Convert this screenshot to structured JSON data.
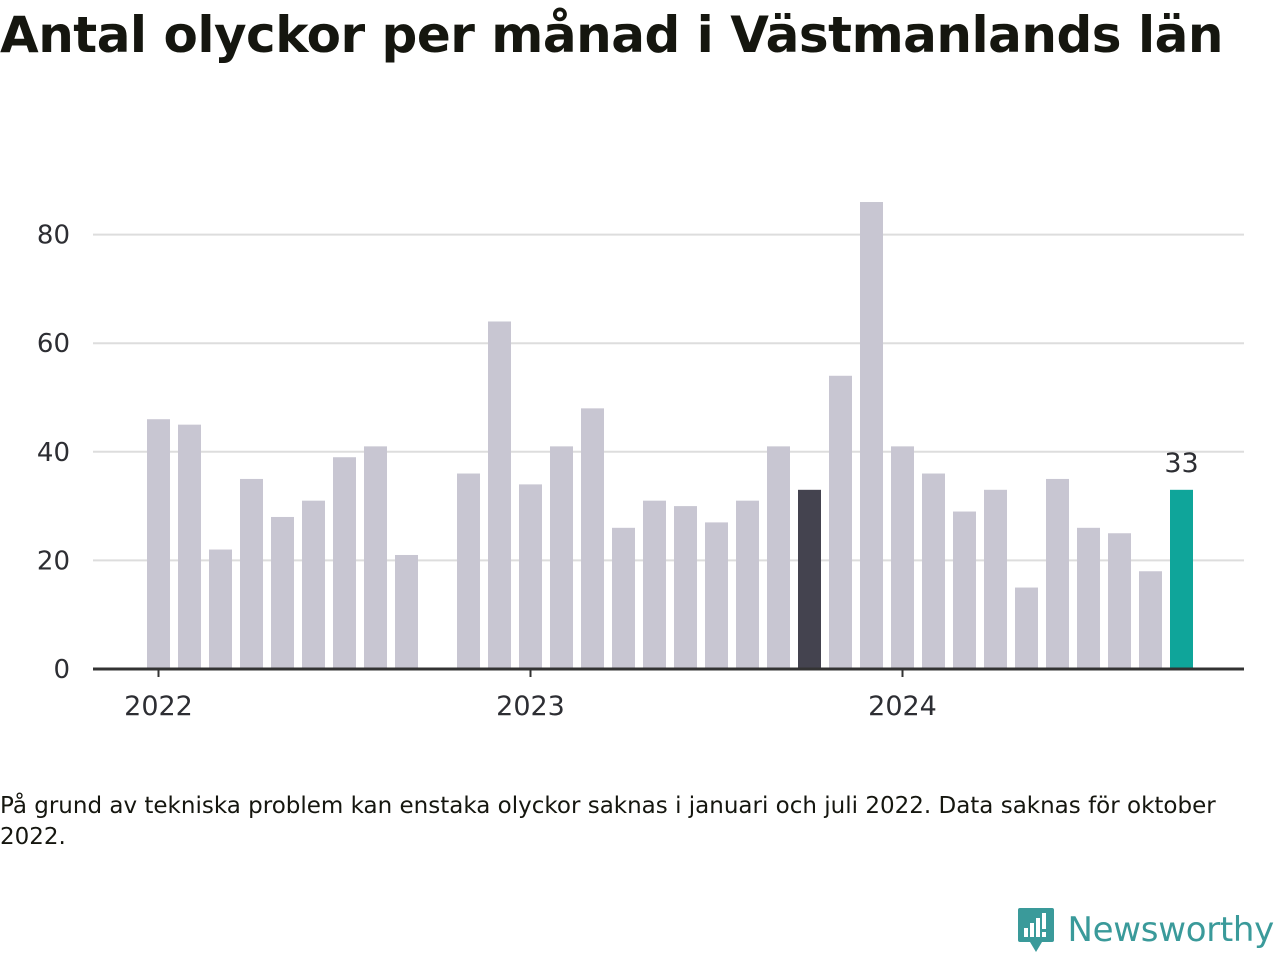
{
  "title": "Antal olyckor per månad i Västmanlands län",
  "note": "På grund av tekniska problem kan enstaka olyckor saknas i januari och juli 2022. Data saknas för oktober 2022.",
  "brand": {
    "name": "Newsworthy",
    "icon": "newsworthy-logo-icon"
  },
  "colors": {
    "bar": "#c8c6d2",
    "highlight_previous_year": "#44434f",
    "highlight_latest": "#0fa59a",
    "gridline": "#dddddd",
    "baseline": "#333333",
    "brand": "#3a9a9a"
  },
  "chart_data": {
    "type": "bar",
    "x_type": "month",
    "x": [
      "2022-01",
      "2022-02",
      "2022-03",
      "2022-04",
      "2022-05",
      "2022-06",
      "2022-07",
      "2022-08",
      "2022-09",
      "2022-10",
      "2022-11",
      "2022-12",
      "2023-01",
      "2023-02",
      "2023-03",
      "2023-04",
      "2023-05",
      "2023-06",
      "2023-07",
      "2023-08",
      "2023-09",
      "2023-10",
      "2023-11",
      "2023-12",
      "2024-01",
      "2024-02",
      "2024-03",
      "2024-04",
      "2024-05",
      "2024-06",
      "2024-07",
      "2024-08",
      "2024-09",
      "2024-10"
    ],
    "values": [
      46,
      45,
      22,
      35,
      28,
      31,
      39,
      41,
      21,
      null,
      36,
      64,
      34,
      41,
      48,
      26,
      31,
      30,
      27,
      31,
      41,
      33,
      54,
      86,
      41,
      36,
      29,
      33,
      15,
      35,
      26,
      25,
      18,
      33
    ],
    "highlighted": {
      "2023-10": "highlight_previous_year",
      "2024-10": "highlight_latest"
    },
    "data_labels": [
      {
        "x": "2024-10",
        "text": "33"
      }
    ],
    "x_tick_labels": [
      {
        "x": "2022-01",
        "label": "2022"
      },
      {
        "x": "2023-01",
        "label": "2023"
      },
      {
        "x": "2024-01",
        "label": "2024"
      }
    ],
    "y_ticks": [
      0,
      20,
      40,
      60,
      80
    ],
    "ylim": [
      0,
      86
    ],
    "grid": true,
    "legend": false
  }
}
